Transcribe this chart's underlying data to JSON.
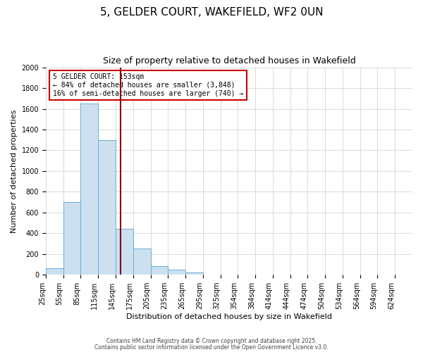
{
  "title": "5, GELDER COURT, WAKEFIELD, WF2 0UN",
  "subtitle": "Size of property relative to detached houses in Wakefield",
  "xlabel": "Distribution of detached houses by size in Wakefield",
  "ylabel": "Number of detached properties",
  "bar_vals": [
    65,
    700,
    1650,
    1300,
    440,
    250,
    85,
    50,
    25,
    0,
    0,
    0,
    0,
    0,
    0,
    0,
    0,
    0,
    0,
    0,
    0
  ],
  "categories": [
    "25sqm",
    "55sqm",
    "85sqm",
    "115sqm",
    "145sqm",
    "175sqm",
    "205sqm",
    "235sqm",
    "265sqm",
    "295sqm",
    "325sqm",
    "354sqm",
    "384sqm",
    "414sqm",
    "444sqm",
    "474sqm",
    "504sqm",
    "534sqm",
    "564sqm",
    "594sqm",
    "624sqm"
  ],
  "bar_color": "#cce0f0",
  "bar_edge_color": "#6aaed6",
  "vline_color": "#8b0000",
  "vline_x_idx": 4,
  "ylim": [
    0,
    2000
  ],
  "yticks": [
    0,
    200,
    400,
    600,
    800,
    1000,
    1200,
    1400,
    1600,
    1800,
    2000
  ],
  "annotation_title": "5 GELDER COURT: 153sqm",
  "annotation_line1": "← 84% of detached houses are smaller (3,848)",
  "annotation_line2": "16% of semi-detached houses are larger (740) →",
  "annotation_box_color": "#ffffff",
  "annotation_box_edge_color": "#cc0000",
  "footnote1": "Contains HM Land Registry data © Crown copyright and database right 2025.",
  "footnote2": "Contains public sector information licensed under the Open Government Licence v3.0.",
  "background_color": "#ffffff",
  "grid_color": "#cccccc",
  "title_fontsize": 11,
  "subtitle_fontsize": 9,
  "axis_label_fontsize": 8,
  "tick_fontsize": 7,
  "annot_fontsize": 7
}
